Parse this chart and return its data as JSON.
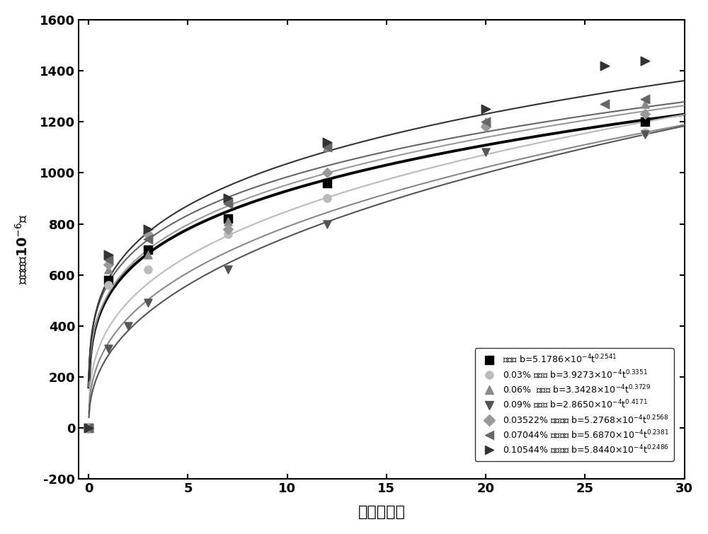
{
  "series": [
    {
      "label_text": "对照组 b=5.1786×10$^{-4}$t$^{0.2541}$",
      "coeff": 0.00051786,
      "power": 0.2541,
      "color": "#000000",
      "marker": "s",
      "markersize": 8,
      "linewidth": 2.8,
      "data_x": [
        0,
        1,
        3,
        7,
        12,
        28
      ],
      "data_y": [
        0,
        580,
        700,
        820,
        960,
        1200
      ]
    },
    {
      "label_text": "0.03% 柠檬酸 b=3.9273×10$^{-4}$t$^{0.3351}$",
      "coeff": 0.00039273,
      "power": 0.3351,
      "color": "#bbbbbb",
      "marker": "o",
      "markersize": 8,
      "linewidth": 1.5,
      "data_x": [
        0,
        1,
        3,
        7,
        12,
        28
      ],
      "data_y": [
        0,
        560,
        620,
        760,
        900,
        1160
      ]
    },
    {
      "label_text": "0.06%  柠檬酸 b=3.3428×10$^{-4}$t$^{0.3729}$",
      "coeff": 0.00033428,
      "power": 0.3729,
      "color": "#888888",
      "marker": "^",
      "markersize": 8,
      "linewidth": 1.5,
      "data_x": [
        0,
        1,
        3,
        7,
        12,
        20,
        28
      ],
      "data_y": [
        0,
        620,
        680,
        810,
        1100,
        1200,
        1270
      ]
    },
    {
      "label_text": "0.09% 柠檬酸 b=2.8650×10$^{-4}$t$^{0.4171}$",
      "coeff": 0.0002865,
      "power": 0.4171,
      "color": "#555555",
      "marker": "v",
      "markersize": 8,
      "linewidth": 1.5,
      "data_x": [
        0,
        1,
        2,
        3,
        7,
        12,
        20,
        28
      ],
      "data_y": [
        0,
        310,
        400,
        490,
        620,
        800,
        1080,
        1150
      ]
    },
    {
      "label_text": "0.03522% 柠檬酸镁 b=5.2768×10$^{-4}$t$^{0.2568}$",
      "coeff": 0.00052768,
      "power": 0.2568,
      "color": "#999999",
      "marker": "D",
      "markersize": 7,
      "linewidth": 1.5,
      "data_x": [
        0,
        1,
        3,
        7,
        12,
        20,
        28
      ],
      "data_y": [
        0,
        640,
        760,
        780,
        1000,
        1180,
        1230
      ]
    },
    {
      "label_text": "0.07044% 柠檬酸镁 b=5.6870×10$^{-4}$t$^{0.2381}$",
      "coeff": 0.0005687,
      "power": 0.2381,
      "color": "#666666",
      "marker": "<",
      "markersize": 9,
      "linewidth": 1.5,
      "data_x": [
        0,
        1,
        3,
        7,
        12,
        20,
        26,
        28
      ],
      "data_y": [
        0,
        660,
        740,
        880,
        1100,
        1200,
        1270,
        1290
      ]
    },
    {
      "label_text": "0.10544% 柠檬酸镁 b=5.8440×10$^{-4}$t$^{0.2486}$",
      "coeff": 0.0005844,
      "power": 0.2486,
      "color": "#333333",
      "marker": ">",
      "markersize": 9,
      "linewidth": 1.5,
      "data_x": [
        0,
        1,
        3,
        7,
        12,
        20,
        26,
        28
      ],
      "data_y": [
        0,
        680,
        780,
        900,
        1120,
        1250,
        1420,
        1440
      ]
    }
  ],
  "xlabel": "龄期（天）",
  "ylabel": "膨胀率（10$^{-6}$）",
  "xlim": [
    -0.5,
    30
  ],
  "ylim": [
    -200,
    1600
  ],
  "xticks": [
    0,
    5,
    10,
    15,
    20,
    25,
    30
  ],
  "yticks": [
    -200,
    0,
    200,
    400,
    600,
    800,
    1000,
    1200,
    1400,
    1600
  ],
  "background_color": "#ffffff",
  "figsize": [
    10.0,
    7.55
  ]
}
